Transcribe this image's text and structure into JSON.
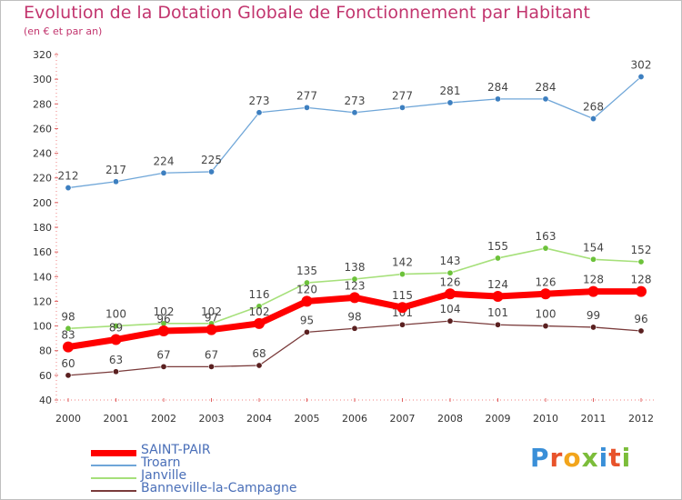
{
  "title": "Evolution de la Dotation Globale de Fonctionnement par Habitant",
  "subtitle": "(en € et par an)",
  "logo": {
    "text": "Proxiti",
    "colors": [
      "#3a8fd8",
      "#e8532b",
      "#f2a51c",
      "#7cbd3a",
      "#3a8fd8",
      "#e8532b",
      "#7cbd3a"
    ]
  },
  "chart_data": {
    "type": "line",
    "title": "Evolution de la Dotation Globale de Fonctionnement par Habitant",
    "subtitle": "(en € et par an)",
    "x": [
      "2000",
      "2001",
      "2002",
      "2003",
      "2004",
      "2005",
      "2006",
      "2007",
      "2008",
      "2009",
      "2010",
      "2011",
      "2012"
    ],
    "ylim": [
      40,
      320
    ],
    "yticks": [
      40,
      60,
      80,
      100,
      120,
      140,
      160,
      180,
      200,
      220,
      240,
      260,
      280,
      300,
      320
    ],
    "grid": false,
    "legend": "bottom-left",
    "series": [
      {
        "name": "Troarn",
        "color": "#6fa6d8",
        "marker": "#3d7fc0",
        "values": [
          212,
          217,
          224,
          225,
          273,
          277,
          273,
          277,
          281,
          284,
          284,
          268,
          302
        ]
      },
      {
        "name": "Janville",
        "color": "#a6e07a",
        "marker": "#6cc23a",
        "values": [
          98,
          100,
          102,
          102,
          116,
          135,
          138,
          142,
          143,
          155,
          163,
          154,
          152
        ]
      },
      {
        "name": "Banneville-la-Campagne",
        "color": "#7a3b3b",
        "marker": "#5a2020",
        "values": [
          60,
          63,
          67,
          67,
          68,
          95,
          98,
          101,
          104,
          101,
          100,
          99,
          96
        ]
      },
      {
        "name": "SAINT-PAIR",
        "color": "#ff0000",
        "marker": "#ff0000",
        "values": [
          83,
          89,
          96,
          97,
          102,
          120,
          123,
          115,
          126,
          124,
          126,
          128,
          128
        ]
      }
    ],
    "legend_order": [
      "SAINT-PAIR",
      "Troarn",
      "Janville",
      "Banneville-la-Campagne"
    ]
  }
}
